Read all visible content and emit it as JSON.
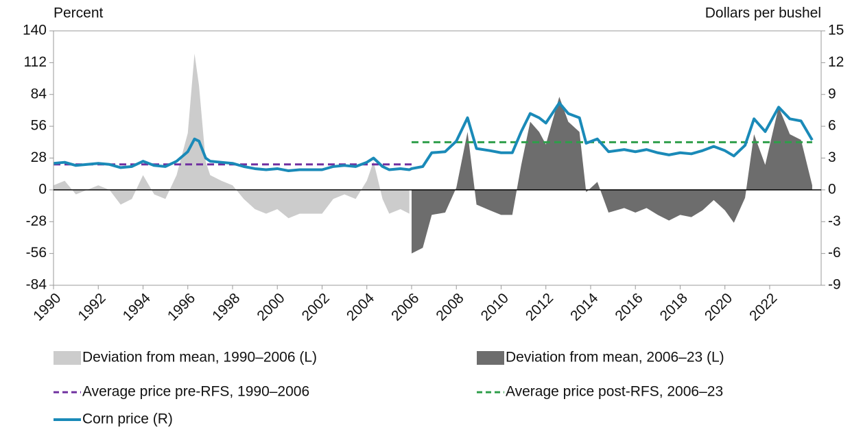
{
  "chart_data": {
    "type": "line",
    "y_label": "Percent",
    "y2_label": "Dollars per bushel",
    "xlim": [
      1990,
      2024.3
    ],
    "xticks": [
      1990,
      1992,
      1994,
      1996,
      1998,
      2000,
      2002,
      2004,
      2006,
      2008,
      2010,
      2012,
      2014,
      2016,
      2018,
      2020,
      2022
    ],
    "ylim": [
      -84,
      140
    ],
    "yticks": [
      -84,
      -56,
      -28,
      0,
      28,
      56,
      84,
      112,
      140
    ],
    "y2lim": [
      -9,
      15
    ],
    "y2ticks": [
      -9,
      -6,
      -3,
      0,
      3,
      6,
      9,
      12,
      15
    ],
    "series": [
      {
        "name": "Deviation from mean, 1990–2006 (L)",
        "kind": "area",
        "color": "#cccccc",
        "x": [
          1990,
          1990.5,
          1991,
          1991.5,
          1992,
          1992.5,
          1993,
          1993.5,
          1994,
          1994.5,
          1995,
          1995.5,
          1996,
          1996.3,
          1996.5,
          1996.8,
          1997,
          1997.5,
          1998,
          1998.5,
          1999,
          1999.5,
          2000,
          2000.5,
          2001,
          2001.5,
          2002,
          2002.5,
          2003,
          2003.5,
          2004,
          2004.3,
          2004.7,
          2005,
          2005.5,
          2005.9
        ],
        "values": [
          4,
          8,
          -4,
          0,
          4,
          0,
          -13,
          -8,
          13,
          -4,
          -8,
          13,
          50,
          120,
          92,
          25,
          13,
          8,
          4,
          -8,
          -17,
          -21,
          -17,
          -25,
          -21,
          -21,
          -21,
          -8,
          -4,
          -8,
          8,
          25,
          -8,
          -21,
          -17,
          -21
        ]
      },
      {
        "name": "Deviation from mean, 2006–23 (L)",
        "kind": "area",
        "color": "#6d6d6d",
        "x": [
          2006,
          2006.5,
          2006.9,
          2007.5,
          2008,
          2008.5,
          2008.9,
          2009.5,
          2010,
          2010.5,
          2010.9,
          2011.3,
          2011.7,
          2012,
          2012.6,
          2013,
          2013.5,
          2013.8,
          2014.3,
          2014.8,
          2015.5,
          2016,
          2016.5,
          2017,
          2017.5,
          2018,
          2018.5,
          2019,
          2019.5,
          2020,
          2020.4,
          2020.9,
          2021.3,
          2021.8,
          2022.4,
          2022.9,
          2023.4,
          2023.9
        ],
        "values": [
          -56,
          -51,
          -22,
          -20,
          2,
          51,
          -13,
          -18,
          -22,
          -22,
          22,
          60,
          51,
          40,
          82,
          60,
          51,
          -2,
          7,
          -20,
          -16,
          -20,
          -16,
          -22,
          -27,
          -22,
          -24,
          -18,
          -9,
          -18,
          -29,
          -7,
          49,
          22,
          73,
          49,
          44,
          4
        ]
      },
      {
        "name": "Average price pre-RFS, 1990–2006",
        "kind": "dashed",
        "axis": "y2",
        "color": "#7030a0",
        "x": [
          1990,
          2006
        ],
        "values": [
          2.4,
          2.4
        ]
      },
      {
        "name": "Average price post-RFS, 2006–23",
        "kind": "dashed",
        "axis": "y2",
        "color": "#2e9e4a",
        "x": [
          2006,
          2023.9
        ],
        "values": [
          4.5,
          4.5
        ]
      },
      {
        "name": "Corn price (R)",
        "kind": "line",
        "axis": "y2",
        "color": "#1a8ab8",
        "x": [
          1990,
          1990.5,
          1991,
          1991.5,
          1992,
          1992.5,
          1993,
          1993.5,
          1994,
          1994.5,
          1995,
          1995.5,
          1996,
          1996.3,
          1996.5,
          1996.8,
          1997,
          1997.5,
          1998,
          1998.5,
          1999,
          1999.5,
          2000,
          2000.5,
          2001,
          2001.5,
          2002,
          2002.5,
          2003,
          2003.5,
          2004,
          2004.3,
          2004.7,
          2005,
          2005.5,
          2005.9,
          2006,
          2006.5,
          2006.9,
          2007.5,
          2008,
          2008.5,
          2008.9,
          2009.5,
          2010,
          2010.5,
          2010.9,
          2011.3,
          2011.7,
          2012,
          2012.6,
          2013,
          2013.5,
          2013.8,
          2014.3,
          2014.8,
          2015.5,
          2016,
          2016.5,
          2017,
          2017.5,
          2018,
          2018.5,
          2019,
          2019.5,
          2020,
          2020.4,
          2020.9,
          2021.3,
          2021.8,
          2022.4,
          2022.9,
          2023.4,
          2023.9
        ],
        "values": [
          2.5,
          2.6,
          2.3,
          2.4,
          2.5,
          2.4,
          2.1,
          2.2,
          2.7,
          2.3,
          2.2,
          2.7,
          3.6,
          4.8,
          4.6,
          3.0,
          2.7,
          2.6,
          2.5,
          2.2,
          2.0,
          1.9,
          2.0,
          1.8,
          1.9,
          1.9,
          1.9,
          2.2,
          2.3,
          2.2,
          2.6,
          3.0,
          2.2,
          1.9,
          2.0,
          1.9,
          2.0,
          2.2,
          3.5,
          3.6,
          4.6,
          6.8,
          3.9,
          3.7,
          3.5,
          3.5,
          5.5,
          7.2,
          6.8,
          6.3,
          8.2,
          7.2,
          6.8,
          4.4,
          4.8,
          3.6,
          3.8,
          3.6,
          3.8,
          3.5,
          3.3,
          3.5,
          3.4,
          3.7,
          4.1,
          3.7,
          3.2,
          4.2,
          6.7,
          5.5,
          7.8,
          6.7,
          6.5,
          4.7
        ]
      }
    ]
  }
}
